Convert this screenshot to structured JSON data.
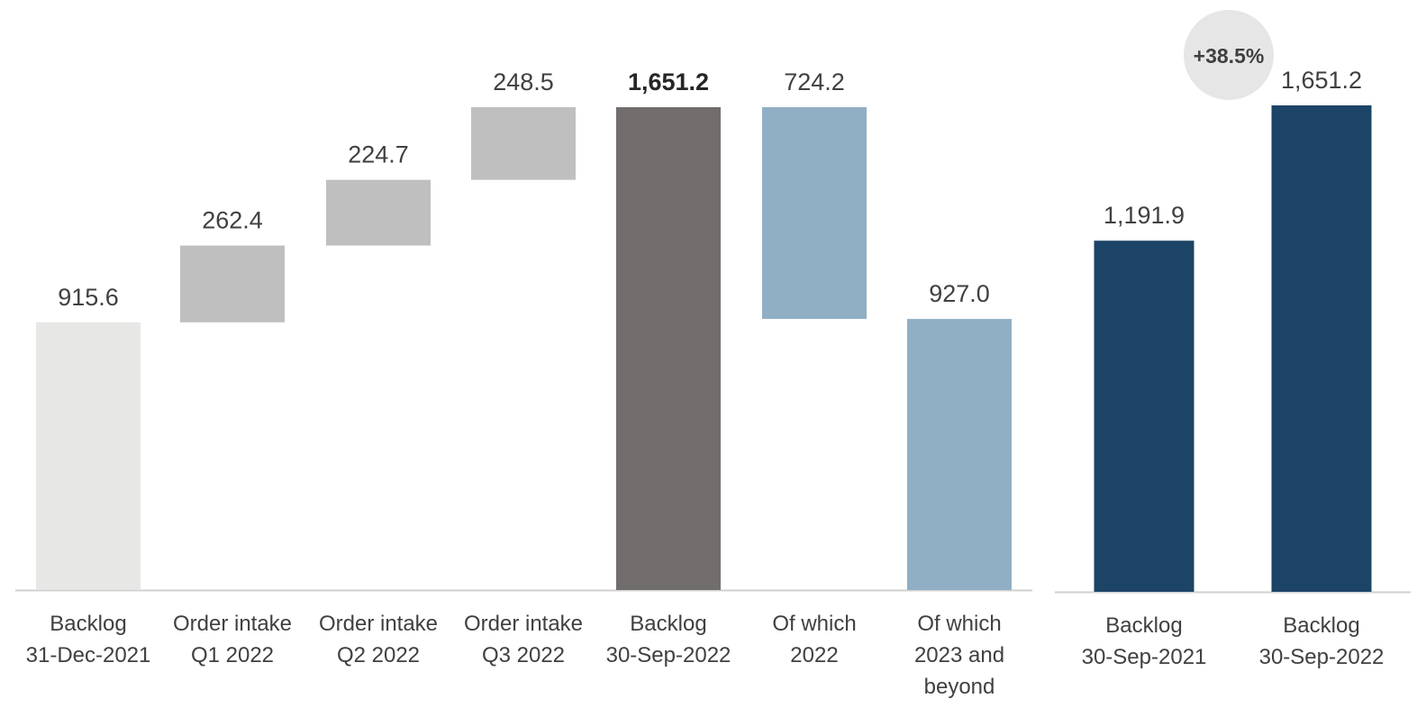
{
  "chart_data": [
    {
      "type": "bar",
      "subtype": "waterfall",
      "title": "",
      "xlabel": "",
      "ylabel": "",
      "ylim": [
        0,
        1700
      ],
      "grid": false,
      "legend": "none",
      "categories": [
        [
          "Backlog",
          "31-Dec-2021"
        ],
        [
          "Order intake",
          "Q1 2022"
        ],
        [
          "Order intake",
          "Q2 2022"
        ],
        [
          "Order intake",
          "Q3 2022"
        ],
        [
          "Backlog",
          "30-Sep-2022"
        ],
        [
          "Of which",
          "2022"
        ],
        [
          "Of which",
          "2023 and",
          "beyond"
        ]
      ],
      "bars": [
        {
          "kind": "total",
          "start": 0,
          "value": 915.6,
          "label": "915.6",
          "color": "#e7e7e6",
          "bold": false
        },
        {
          "kind": "increase",
          "start": 915.6,
          "value": 262.4,
          "label": "262.4",
          "color": "#bfbfbf",
          "bold": false
        },
        {
          "kind": "increase",
          "start": 1178.0,
          "value": 224.7,
          "label": "224.7",
          "color": "#bfbfbf",
          "bold": false
        },
        {
          "kind": "increase",
          "start": 1402.7,
          "value": 248.5,
          "label": "248.5",
          "color": "#bfbfbf",
          "bold": false
        },
        {
          "kind": "total",
          "start": 0,
          "value": 1651.2,
          "label": "1,651.2",
          "color": "#716d6c",
          "bold": true
        },
        {
          "kind": "part",
          "start": 927.0,
          "value": 724.2,
          "label": "724.2",
          "color": "#90afc4",
          "bold": false
        },
        {
          "kind": "part",
          "start": 0,
          "value": 927.0,
          "label": "927.0",
          "color": "#90afc4",
          "bold": false
        }
      ]
    },
    {
      "type": "bar",
      "title": "",
      "xlabel": "",
      "ylabel": "",
      "ylim": [
        0,
        1700
      ],
      "grid": false,
      "legend": "none",
      "categories": [
        [
          "Backlog",
          "30-Sep-2021"
        ],
        [
          "Backlog",
          "30-Sep-2022"
        ]
      ],
      "values": [
        1191.9,
        1651.2
      ],
      "labels": [
        "1,191.9",
        "1,651.2"
      ],
      "color": "#1c4466",
      "annotation": {
        "text": "+38.5%",
        "color": "#e6e6e6"
      }
    }
  ]
}
